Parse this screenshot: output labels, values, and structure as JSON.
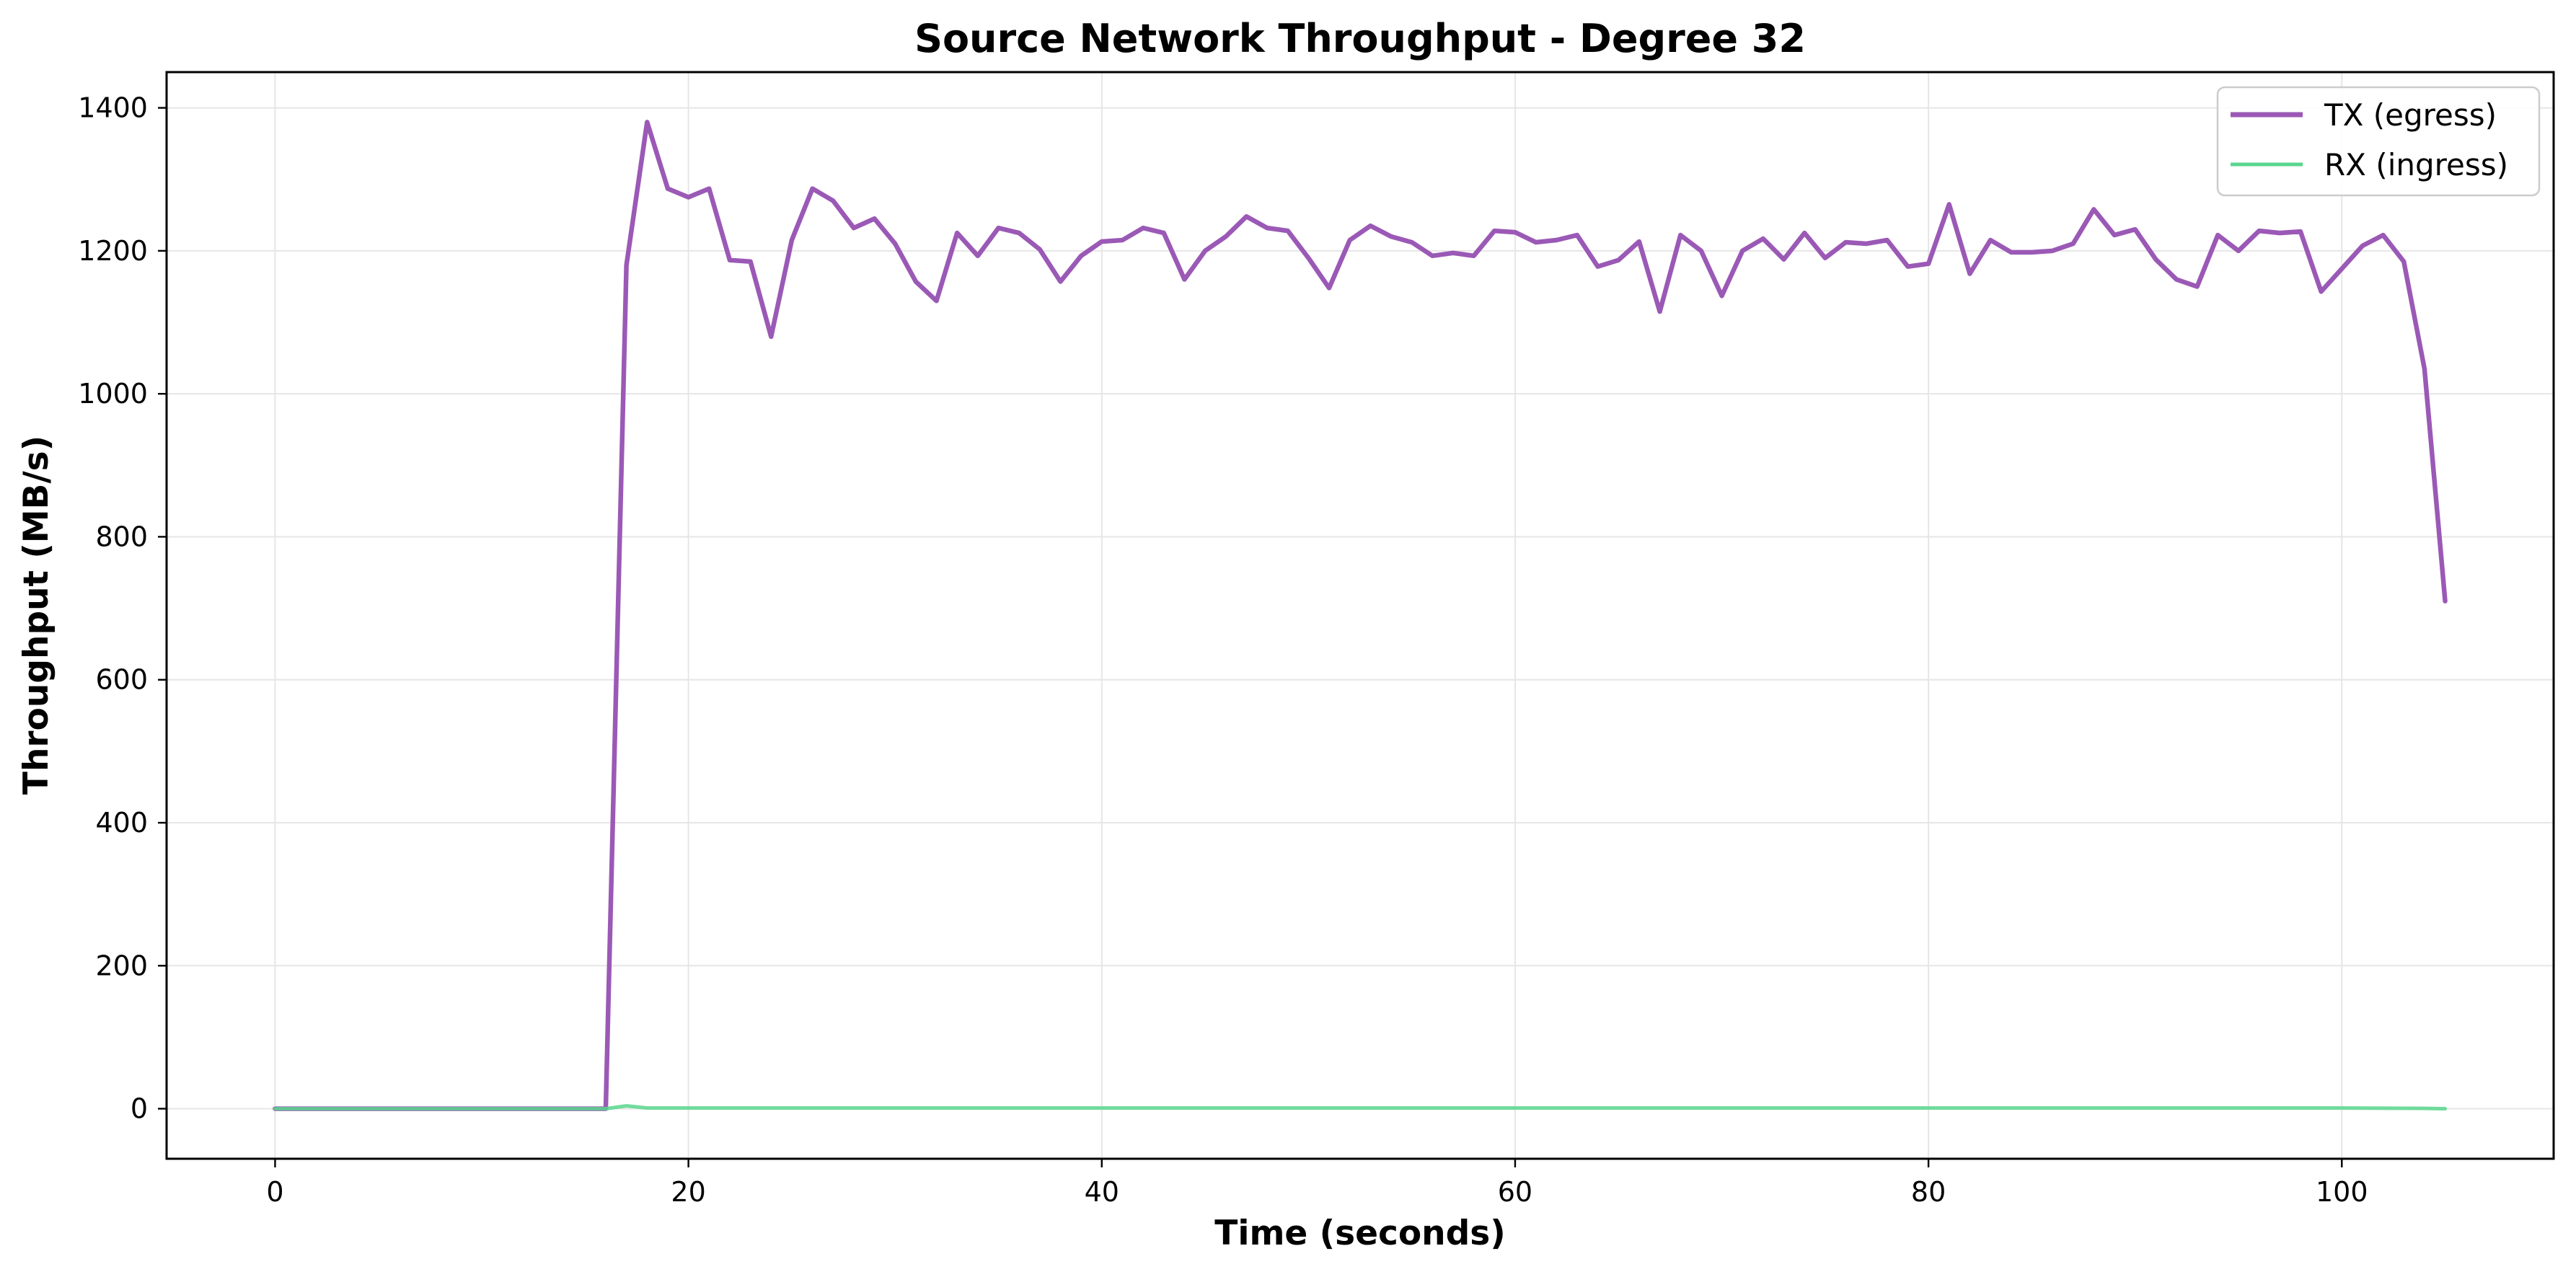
{
  "chart_data": {
    "type": "line",
    "title": "Source Network Throughput - Degree 32",
    "xlabel": "Time (seconds)",
    "ylabel": "Throughput (MB/s)",
    "xlim": [
      -5.25,
      110.25
    ],
    "ylim": [
      -70,
      1450
    ],
    "xticks": [
      0,
      20,
      40,
      60,
      80,
      100
    ],
    "yticks": [
      0,
      200,
      400,
      600,
      800,
      1000,
      1200,
      1400
    ],
    "grid": true,
    "legend_position": "top-right",
    "colors": {
      "tx": "#9b59b6",
      "rx": "#58d68d"
    },
    "series": [
      {
        "name": "TX (egress)",
        "color": "#9b59b6",
        "x": [
          0,
          1,
          2,
          3,
          4,
          5,
          6,
          7,
          8,
          9,
          10,
          11,
          12,
          13,
          14,
          15,
          16,
          17,
          18,
          19,
          20,
          21,
          22,
          23,
          24,
          25,
          26,
          27,
          28,
          29,
          30,
          31,
          32,
          33,
          34,
          35,
          36,
          37,
          38,
          39,
          40,
          41,
          42,
          43,
          44,
          45,
          46,
          47,
          48,
          49,
          50,
          51,
          52,
          53,
          54,
          55,
          56,
          57,
          58,
          59,
          60,
          61,
          62,
          63,
          64,
          65,
          66,
          67,
          68,
          69,
          70,
          71,
          72,
          73,
          74,
          75,
          76,
          77,
          78,
          79,
          80,
          81,
          82,
          83,
          84,
          85,
          86,
          87,
          88,
          89,
          90,
          91,
          92,
          93,
          94,
          95,
          96,
          97,
          98,
          99,
          100,
          101,
          102,
          103,
          104,
          105
        ],
        "values": [
          0,
          0,
          0,
          0,
          0,
          0,
          0,
          0,
          0,
          0,
          0,
          0,
          0,
          0,
          0,
          0,
          0,
          1180,
          1380,
          1287,
          1275,
          1287,
          1187,
          1185,
          1080,
          1215,
          1287,
          1270,
          1232,
          1245,
          1210,
          1157,
          1130,
          1225,
          1193,
          1232,
          1225,
          1202,
          1157,
          1193,
          1213,
          1215,
          1232,
          1225,
          1160,
          1200,
          1220,
          1248,
          1232,
          1228,
          1190,
          1148,
          1215,
          1235,
          1220,
          1212,
          1193,
          1197,
          1193,
          1228,
          1226,
          1212,
          1215,
          1222,
          1178,
          1187,
          1213,
          1115,
          1222,
          1200,
          1137,
          1200,
          1217,
          1188,
          1225,
          1190,
          1212,
          1210,
          1215,
          1178,
          1182,
          1265,
          1168,
          1215,
          1198,
          1198,
          1200,
          1210,
          1258,
          1222,
          1230,
          1188,
          1160,
          1150,
          1222,
          1200,
          1228,
          1225,
          1227,
          1143,
          1175,
          1207,
          1222,
          1185,
          1035,
          710
        ]
      },
      {
        "name": "RX (ingress)",
        "color": "#58d68d",
        "x": [
          0,
          5,
          10,
          15,
          16,
          17,
          18,
          20,
          30,
          40,
          50,
          60,
          70,
          80,
          90,
          100,
          104,
          105
        ],
        "values": [
          0,
          0,
          0,
          0,
          0,
          4,
          1,
          1,
          1,
          1,
          1,
          1,
          1,
          1,
          1,
          1,
          0.5,
          0
        ]
      }
    ]
  }
}
